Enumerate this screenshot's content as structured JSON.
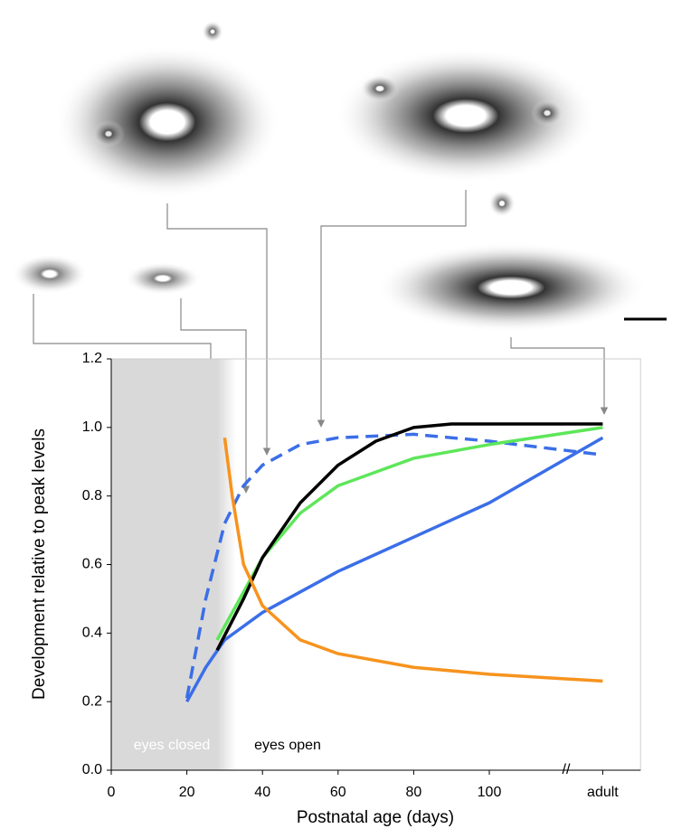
{
  "chart_data": {
    "type": "line",
    "x_label": "Postnatal age (days)",
    "y_label": "Development relative to peak levels",
    "annotations": [
      "eyes closed",
      "eyes open",
      "//"
    ],
    "shade": [
      0,
      33
    ],
    "xlim": [
      0,
      140
    ],
    "xticks": [
      0,
      20,
      40,
      60,
      80,
      100,
      {
        "value": 130,
        "label": "adult"
      }
    ],
    "ylim": [
      0,
      1.2
    ],
    "yticks": [
      {
        "value": 0,
        "label": "0.0"
      },
      0.2,
      0.4,
      0.6,
      0.8,
      {
        "value": 1,
        "label": "1.0"
      },
      1.2
    ],
    "series": [
      {
        "color": "#3b6ee8",
        "dash": true,
        "x": [
          20,
          25,
          30,
          35,
          40,
          50,
          60,
          80,
          100,
          130
        ],
        "values": [
          0.21,
          0.5,
          0.72,
          0.83,
          0.89,
          0.95,
          0.97,
          0.98,
          0.96,
          0.92
        ]
      },
      {
        "color": "#3b6ee8",
        "dash": false,
        "x": [
          20,
          25,
          30,
          40,
          50,
          60,
          80,
          100,
          130
        ],
        "values": [
          0.2,
          0.3,
          0.38,
          0.46,
          0.52,
          0.58,
          0.68,
          0.78,
          0.97
        ]
      },
      {
        "color": "#5ee65a",
        "dash": false,
        "x": [
          28,
          35,
          40,
          50,
          60,
          80,
          100,
          130
        ],
        "values": [
          0.38,
          0.52,
          0.62,
          0.75,
          0.83,
          0.91,
          0.95,
          1.0
        ]
      },
      {
        "color": "#000000",
        "dash": false,
        "x": [
          28,
          35,
          40,
          50,
          60,
          70,
          80,
          90,
          100,
          130
        ],
        "values": [
          0.35,
          0.5,
          0.62,
          0.78,
          0.89,
          0.96,
          1.0,
          1.01,
          1.01,
          1.01
        ]
      },
      {
        "color": "#f7931e",
        "dash": false,
        "x": [
          30,
          32,
          35,
          40,
          50,
          60,
          80,
          100,
          130
        ],
        "values": [
          0.97,
          0.8,
          0.6,
          0.48,
          0.38,
          0.34,
          0.3,
          0.28,
          0.26
        ]
      }
    ]
  }
}
